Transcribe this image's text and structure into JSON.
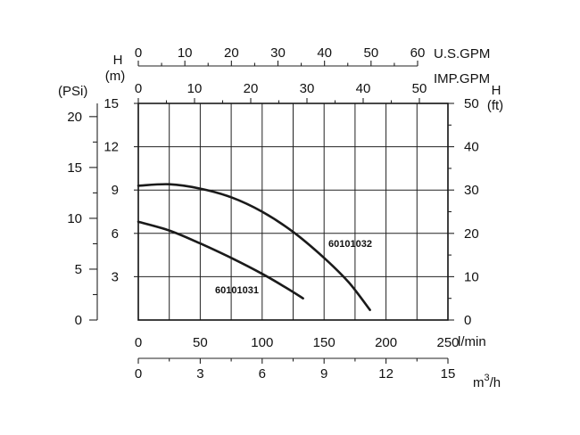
{
  "chart_data": {
    "type": "line",
    "series": [
      {
        "name": "60101031",
        "flow_lpm": [
          0,
          25,
          50,
          75,
          100,
          120,
          133
        ],
        "head_m": [
          6.8,
          6.2,
          5.3,
          4.3,
          3.2,
          2.2,
          1.5
        ]
      },
      {
        "name": "60101032",
        "flow_lpm": [
          0,
          25,
          50,
          75,
          100,
          125,
          150,
          170,
          187
        ],
        "head_m": [
          9.3,
          9.4,
          9.1,
          8.5,
          7.5,
          6.1,
          4.3,
          2.6,
          0.7
        ]
      }
    ],
    "axes": {
      "bottom_flow": {
        "unit": "l/min",
        "ticks": [
          "0",
          "50",
          "100",
          "150",
          "200",
          "250"
        ],
        "range": [
          0,
          250
        ]
      },
      "bottom_m3h": {
        "unit": "m3/h",
        "unit_base": "m",
        "unit_sup": "3",
        "unit_suffix": "/h",
        "ticks": [
          "0",
          "3",
          "6",
          "9",
          "12",
          "15"
        ],
        "range": [
          0,
          15
        ]
      },
      "top_usgpm": {
        "unit": "U.S.GPM",
        "ticks": [
          "0",
          "10",
          "20",
          "30",
          "40",
          "50",
          "60"
        ],
        "range": [
          0,
          60
        ]
      },
      "top_impgpm": {
        "unit": "IMP.GPM",
        "ticks": [
          "0",
          "10",
          "20",
          "30",
          "40",
          "50"
        ],
        "range": [
          0,
          50
        ]
      },
      "left_m": {
        "label_top": "H",
        "label_bottom": "(m)",
        "ticks": [
          "3",
          "6",
          "9",
          "12",
          "15"
        ],
        "range": [
          0,
          15
        ]
      },
      "left_psi": {
        "unit": "(PSi)",
        "ticks": [
          "0",
          "5",
          "10",
          "15",
          "20"
        ],
        "range": [
          0,
          21.3
        ]
      },
      "right_ft": {
        "label_top": "H",
        "label_bottom": "(ft)",
        "ticks": [
          "0",
          "10",
          "20",
          "30",
          "40",
          "50"
        ],
        "range": [
          0,
          50
        ]
      }
    },
    "grid": true
  }
}
